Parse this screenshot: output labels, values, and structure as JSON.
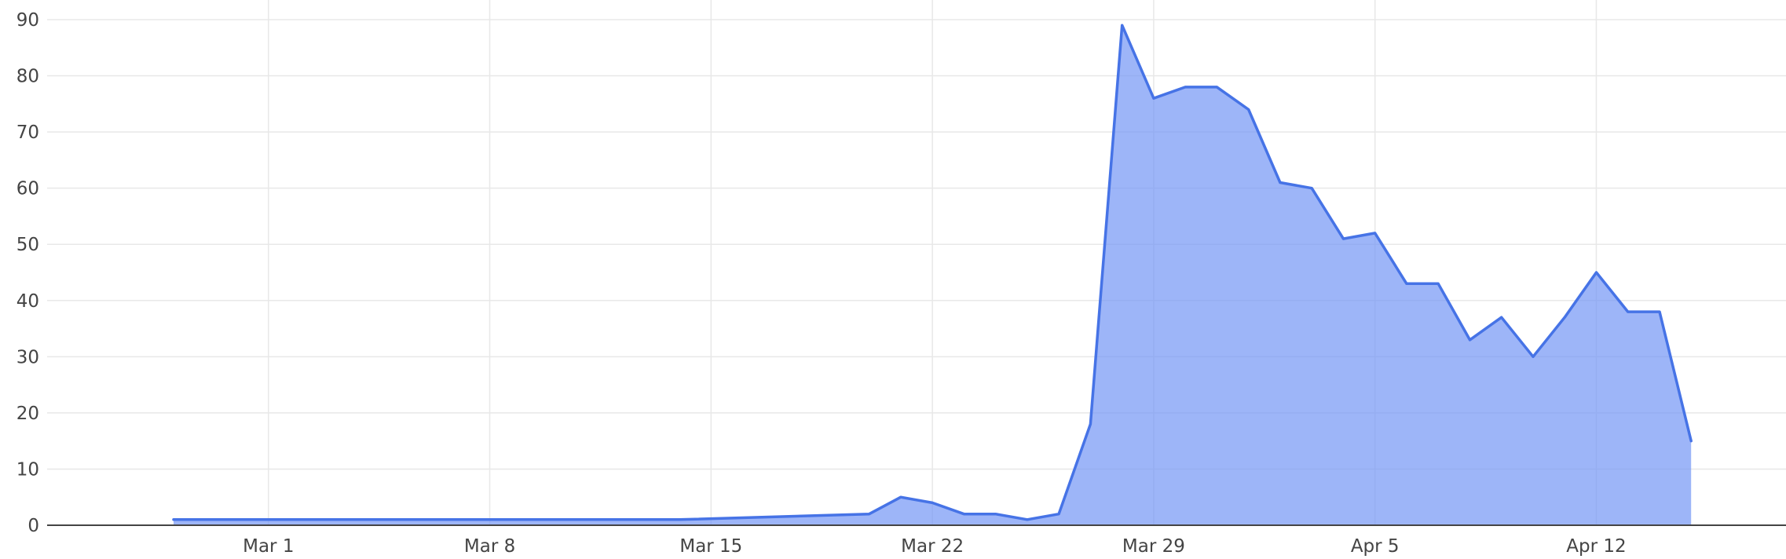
{
  "chart_data": {
    "type": "area",
    "title": "",
    "xlabel": "",
    "ylabel": "",
    "grid": true,
    "legend": "none",
    "ylim": [
      0,
      90
    ],
    "y_ticks": [
      0,
      10,
      20,
      30,
      40,
      50,
      60,
      70,
      80,
      90
    ],
    "x_range": [
      "2020-02-23",
      "2020-04-18"
    ],
    "x_ticks": [
      {
        "date": "2020-03-01",
        "label": "Mar 1"
      },
      {
        "date": "2020-03-08",
        "label": "Mar 8"
      },
      {
        "date": "2020-03-15",
        "label": "Mar 15"
      },
      {
        "date": "2020-03-22",
        "label": "Mar 22"
      },
      {
        "date": "2020-03-29",
        "label": "Mar 29"
      },
      {
        "date": "2020-04-05",
        "label": "Apr 5"
      },
      {
        "date": "2020-04-12",
        "label": "Apr 12"
      }
    ],
    "colors": {
      "line": "#4673e6",
      "fill": "#7396f5"
    },
    "series": [
      {
        "points": [
          {
            "x": "2020-02-27",
            "y": 1
          },
          {
            "x": "2020-03-14",
            "y": 1
          },
          {
            "x": "2020-03-20",
            "y": 2
          },
          {
            "x": "2020-03-21",
            "y": 5
          },
          {
            "x": "2020-03-22",
            "y": 4
          },
          {
            "x": "2020-03-23",
            "y": 2
          },
          {
            "x": "2020-03-24",
            "y": 2
          },
          {
            "x": "2020-03-25",
            "y": 1
          },
          {
            "x": "2020-03-26",
            "y": 2
          },
          {
            "x": "2020-03-27",
            "y": 18
          },
          {
            "x": "2020-03-28",
            "y": 89
          },
          {
            "x": "2020-03-29",
            "y": 76
          },
          {
            "x": "2020-03-30",
            "y": 78
          },
          {
            "x": "2020-03-31",
            "y": 78
          },
          {
            "x": "2020-04-01",
            "y": 74
          },
          {
            "x": "2020-04-02",
            "y": 61
          },
          {
            "x": "2020-04-03",
            "y": 60
          },
          {
            "x": "2020-04-04",
            "y": 51
          },
          {
            "x": "2020-04-05",
            "y": 52
          },
          {
            "x": "2020-04-06",
            "y": 43
          },
          {
            "x": "2020-04-07",
            "y": 43
          },
          {
            "x": "2020-04-08",
            "y": 33
          },
          {
            "x": "2020-04-09",
            "y": 37
          },
          {
            "x": "2020-04-10",
            "y": 30
          },
          {
            "x": "2020-04-11",
            "y": 37
          },
          {
            "x": "2020-04-12",
            "y": 45
          },
          {
            "x": "2020-04-13",
            "y": 38
          },
          {
            "x": "2020-04-14",
            "y": 38
          },
          {
            "x": "2020-04-15",
            "y": 15
          }
        ]
      }
    ]
  }
}
